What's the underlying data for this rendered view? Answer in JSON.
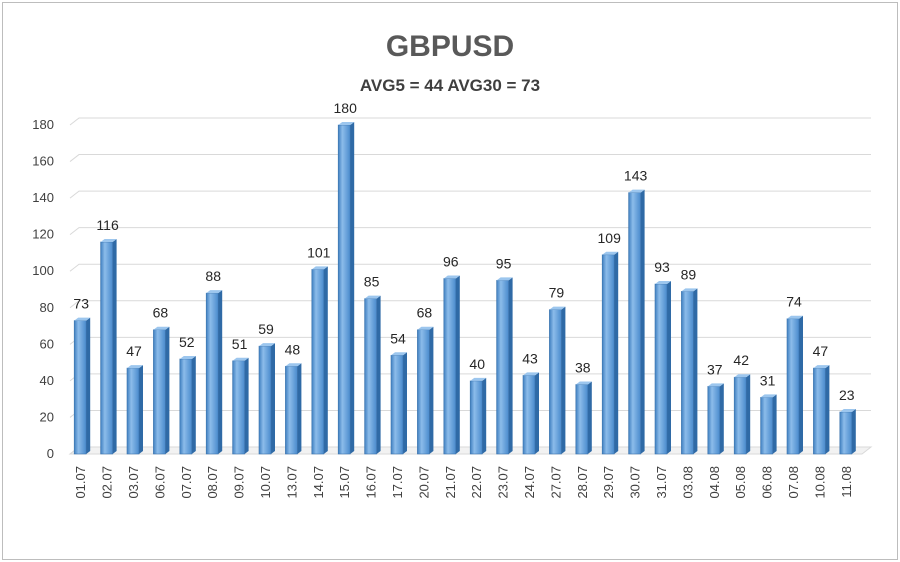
{
  "chart_data": {
    "type": "bar",
    "title": "GBPUSD",
    "subtitle": "AVG5 = 44 AVG30 = 73",
    "categories": [
      "01.07",
      "02.07",
      "03.07",
      "06.07",
      "07.07",
      "08.07",
      "09.07",
      "10.07",
      "13.07",
      "14.07",
      "15.07",
      "16.07",
      "17.07",
      "20.07",
      "21.07",
      "22.07",
      "23.07",
      "24.07",
      "27.07",
      "28.07",
      "29.07",
      "30.07",
      "31.07",
      "03.08",
      "04.08",
      "05.08",
      "06.08",
      "07.08",
      "10.08",
      "11.08"
    ],
    "values": [
      73,
      116,
      47,
      68,
      52,
      88,
      51,
      59,
      48,
      101,
      180,
      85,
      54,
      68,
      96,
      40,
      95,
      43,
      79,
      38,
      109,
      143,
      93,
      89,
      37,
      42,
      31,
      74,
      47,
      23
    ],
    "y_ticks": [
      "0",
      "20",
      "40",
      "60",
      "80",
      "100",
      "120",
      "140",
      "160",
      "180"
    ],
    "ylim": [
      0,
      180
    ],
    "grid": true,
    "bar_color": "#5b9bd5",
    "legend": "none"
  }
}
